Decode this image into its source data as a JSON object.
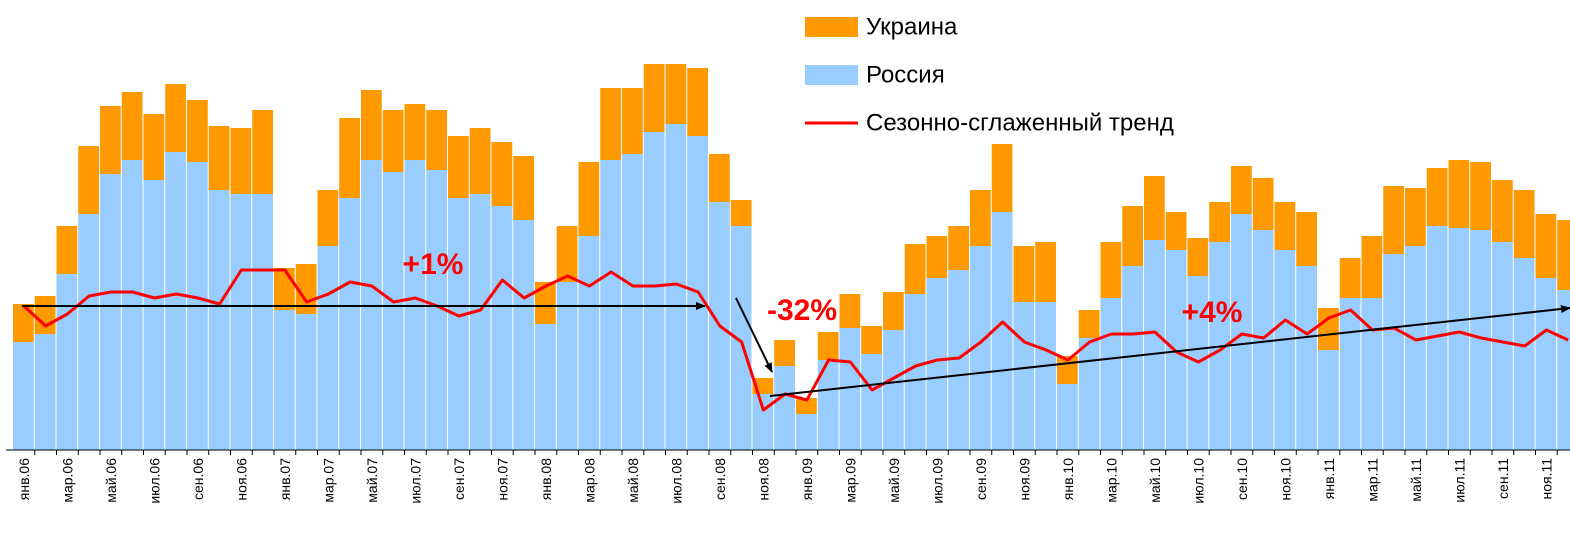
{
  "chart_data": {
    "type": "bar",
    "stacked": true,
    "categories": [
      "янв.06",
      null,
      "мар.06",
      null,
      "май.06",
      null,
      "июл.06",
      null,
      "сен.06",
      null,
      "ноя.06",
      null,
      "янв.07",
      null,
      "мар.07",
      null,
      "май.07",
      null,
      "июл.07",
      null,
      "сен.07",
      null,
      "ноя.07",
      null,
      "янв.08",
      null,
      "мар.08",
      null,
      "май.08",
      null,
      "июл.08",
      null,
      "сен.08",
      null,
      "ноя.08",
      null,
      "янв.09",
      null,
      "мар.09",
      null,
      "май.09",
      null,
      "июл.09",
      null,
      "сен.09",
      null,
      "ноя.09",
      null,
      "янв.10",
      null,
      "мар.10",
      null,
      "май.10",
      null,
      "июл.10",
      null,
      "сен.10",
      null,
      "ноя.10",
      null,
      "янв.11",
      null,
      "мар.11",
      null,
      "май.11",
      null,
      "июл.11",
      null,
      "сен.11",
      null,
      "ноя.11",
      null
    ],
    "series": [
      {
        "name": "Украина",
        "color": "#ff9900",
        "type": "bar",
        "values": [
          9.5,
          9.5,
          12,
          17,
          17,
          17,
          16.5,
          17,
          15.5,
          16,
          16.5,
          21,
          10.5,
          12.5,
          14,
          20,
          17.5,
          15.5,
          14,
          15,
          15.5,
          16.5,
          16,
          16,
          10.5,
          14,
          18.5,
          18,
          16.5,
          17,
          15,
          17,
          12,
          6.5,
          4,
          6.5,
          4,
          7,
          8.5,
          7,
          9.5,
          12.5,
          10.5,
          11,
          14,
          17,
          14,
          15,
          7,
          7,
          14,
          15,
          16,
          9.5,
          9.5,
          10,
          12,
          13,
          12,
          13.5,
          10.5,
          10,
          15.5,
          17,
          14.5,
          14.5,
          17,
          17,
          15.5,
          17,
          16,
          17.5
        ]
      },
      {
        "name": "Россия",
        "color": "#99ccff",
        "type": "bar",
        "values": [
          27,
          29,
          44,
          59,
          69,
          72.5,
          67.5,
          74.5,
          72,
          65,
          64,
          64,
          35,
          34,
          51,
          63,
          72.5,
          69.5,
          72.5,
          70,
          63,
          64,
          61,
          57.5,
          31.5,
          42,
          53.5,
          72.5,
          74,
          79.5,
          81.5,
          78.5,
          62,
          56,
          14,
          21,
          9,
          22.5,
          30.5,
          24,
          30,
          39,
          43,
          45,
          51,
          59.5,
          37,
          37,
          16.5,
          28,
          38,
          46,
          52.5,
          50,
          43.5,
          52,
          59,
          55,
          50,
          46,
          25,
          38,
          38,
          49,
          51,
          56,
          55.5,
          55,
          52,
          48,
          43,
          40
        ]
      },
      {
        "name": "Сезонно-сглаженный тренд",
        "color": "#ff0000",
        "type": "line",
        "values": [
          36,
          31,
          34,
          38.5,
          39.5,
          39.5,
          38,
          39,
          38,
          36.5,
          45,
          45,
          45,
          37,
          39,
          42,
          41,
          37,
          38,
          36,
          33.5,
          35,
          42.5,
          38,
          41,
          43.5,
          41,
          44.5,
          41,
          41,
          41.5,
          39.5,
          31,
          27,
          10,
          14,
          12.5,
          22.5,
          22,
          15,
          18,
          21,
          22.5,
          23,
          27,
          32,
          27,
          25,
          22.5,
          27,
          29,
          29,
          29.5,
          24.5,
          22,
          25,
          29,
          28,
          32.5,
          29,
          33,
          35,
          30,
          30.5,
          27.5,
          28.5,
          29.5,
          28,
          27,
          26,
          30,
          27.5
        ]
      }
    ],
    "ylim": [
      0,
      100
    ],
    "legend": "top-right",
    "annotations": [
      "+1%",
      "-32%",
      "+4%"
    ]
  }
}
